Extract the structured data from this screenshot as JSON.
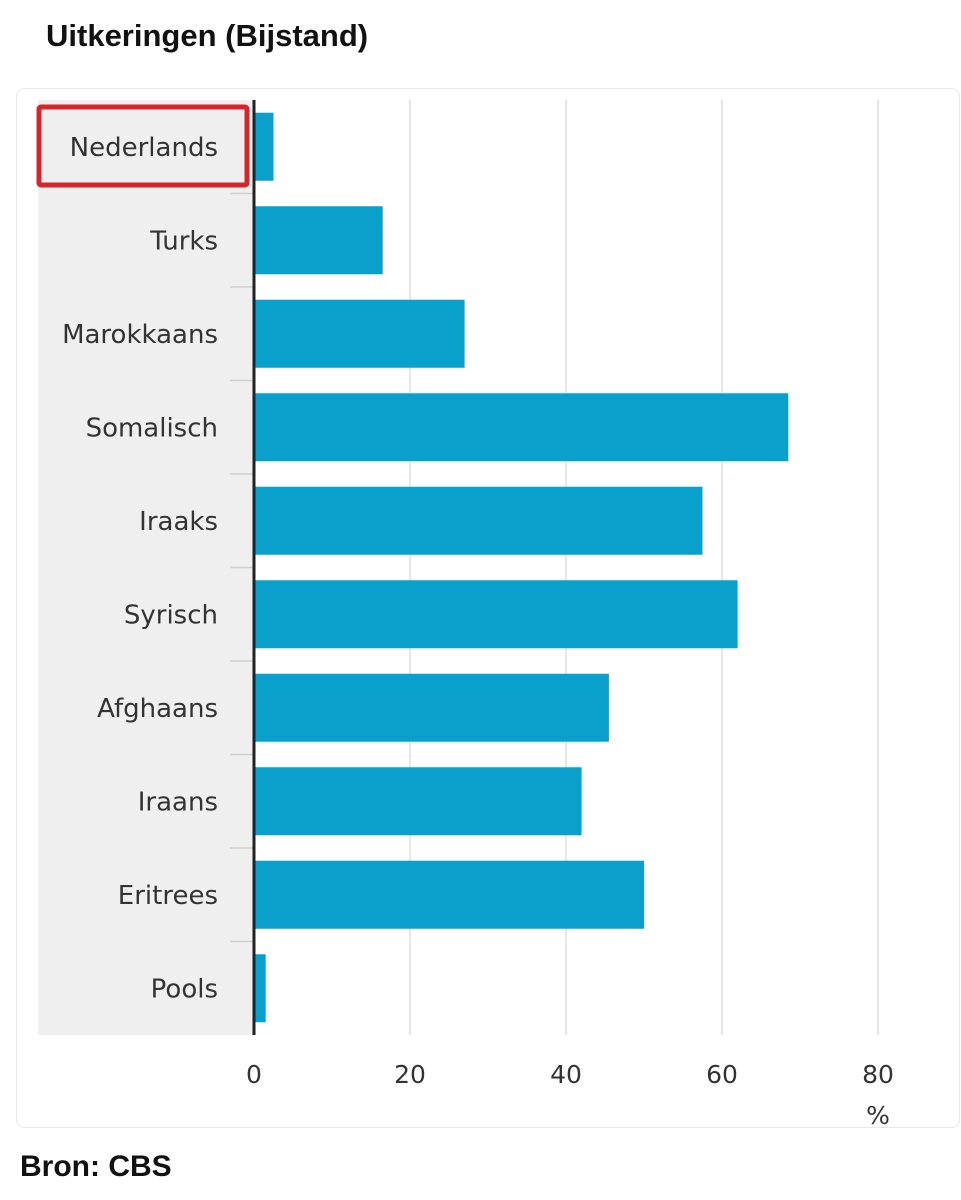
{
  "chart_data": {
    "type": "bar",
    "orientation": "horizontal",
    "title": "Uitkeringen (Bijstand)",
    "categories": [
      "Nederlands",
      "Turks",
      "Marokkaans",
      "Somalisch",
      "Iraaks",
      "Syrisch",
      "Afghaans",
      "Iraans",
      "Eritrees",
      "Pools"
    ],
    "values": [
      2.5,
      16.5,
      27,
      68.5,
      57.5,
      62,
      45.5,
      42,
      50,
      1.5
    ],
    "xlabel": "%",
    "ylabel": "",
    "xlim": [
      0,
      80
    ],
    "xticks": [
      0,
      20,
      40,
      60,
      80
    ],
    "grid": true,
    "highlighted_category": "Nederlands",
    "source": "Bron: CBS",
    "colors": {
      "bar": "#0aa0cc",
      "label_band": "#efefef",
      "grid": "#dedede",
      "axis": "#222222",
      "highlight_box": "#d3262c",
      "text": "#333333"
    }
  }
}
